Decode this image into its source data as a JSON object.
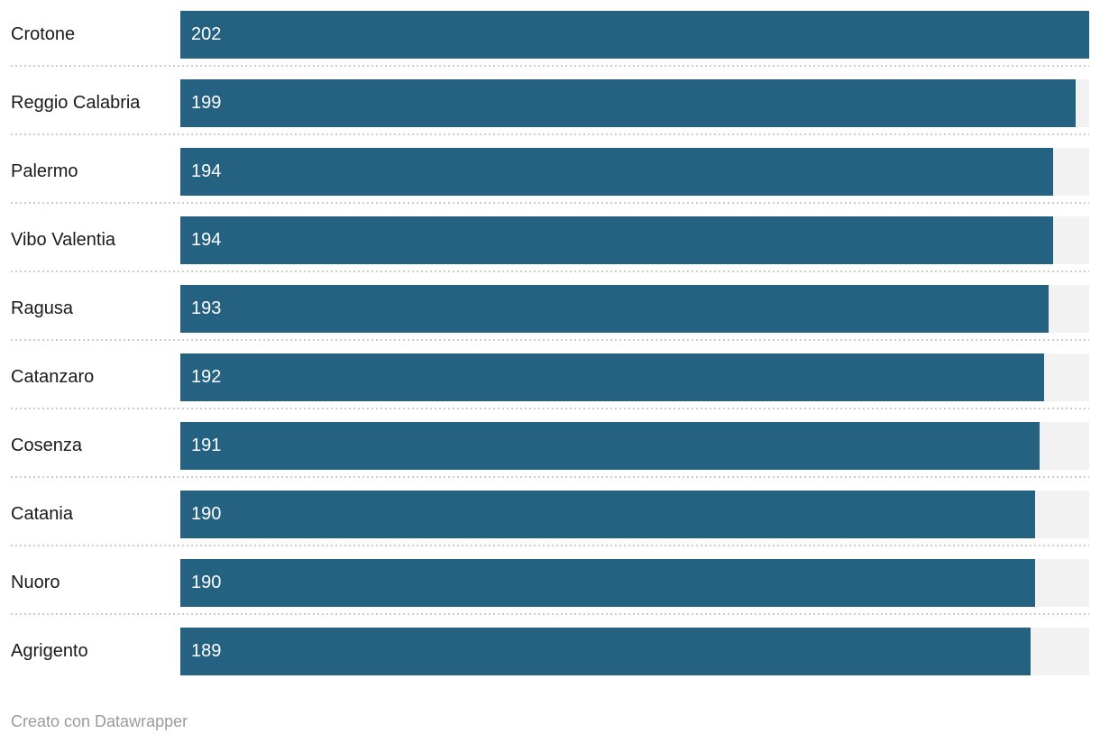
{
  "chart_data": {
    "type": "bar",
    "orientation": "horizontal",
    "title": "",
    "xlabel": "",
    "ylabel": "",
    "xlim": [
      0,
      202
    ],
    "grid": false,
    "legend": false,
    "value_label_position": "inside-start",
    "categories": [
      "Crotone",
      "Reggio Calabria",
      "Palermo",
      "Vibo Valentia",
      "Ragusa",
      "Catanzaro",
      "Cosenza",
      "Catania",
      "Nuoro",
      "Agrigento"
    ],
    "values": [
      202,
      199,
      194,
      194,
      193,
      192,
      191,
      190,
      190,
      189
    ],
    "value_labels": [
      "202",
      "199",
      "194",
      "194",
      "193",
      "192",
      "191",
      "190",
      "190",
      "189"
    ]
  },
  "colors": {
    "bar": "#256282",
    "track": "#f2f2f2",
    "separator": "#cccccc",
    "category_text": "#1a1a1a",
    "value_text": "#ffffff",
    "attribution_text": "#9b9b9b"
  },
  "footer": {
    "text": "Creato con Datawrapper"
  }
}
